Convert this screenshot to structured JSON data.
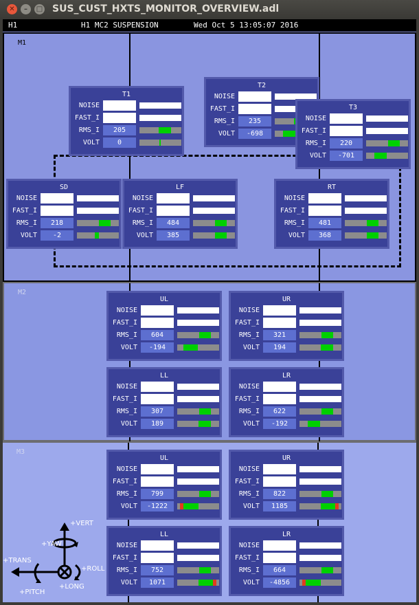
{
  "window": {
    "title": "SUS_CUST_HXTS_MONITOR_OVERVIEW.adl"
  },
  "header": {
    "ifo": "H1",
    "system": "H1 MC2 SUSPENSION",
    "datetime": "Wed Oct  5 13:05:07 2016"
  },
  "row_labels": {
    "noise": "NOISE",
    "fast_i": "FAST_I",
    "rms_i": "RMS_I",
    "volt": "VOLT"
  },
  "sections": {
    "m1": "M1",
    "m2": "M2",
    "m3": "M3"
  },
  "colors": {
    "background": "#8a95e0",
    "panel": "#3a4198",
    "meter_ok": "#00d000",
    "meter_alarm": "#e03c1e"
  },
  "panels": {
    "m1_t1": {
      "title": "T1",
      "rms_i": "205",
      "volt": "0",
      "rms_level": [
        0.46,
        0.76
      ],
      "volt_level": [
        0.48,
        0.52
      ]
    },
    "m1_t2": {
      "title": "T2",
      "rms_i": "235",
      "volt": "-698",
      "rms_level": [
        0.46,
        0.8
      ],
      "volt_level": [
        0.2,
        0.5
      ]
    },
    "m1_t3": {
      "title": "T3",
      "rms_i": "220",
      "volt": "-701",
      "rms_level": [
        0.52,
        0.8
      ],
      "volt_level": [
        0.2,
        0.5
      ]
    },
    "m1_sd": {
      "title": "SD",
      "rms_i": "218",
      "volt": "-2",
      "rms_level": [
        0.52,
        0.8
      ],
      "volt_level": [
        0.42,
        0.52
      ]
    },
    "m1_lf": {
      "title": "LF",
      "rms_i": "484",
      "volt": "385",
      "rms_level": [
        0.52,
        0.8
      ],
      "volt_level": [
        0.52,
        0.8
      ]
    },
    "m1_rt": {
      "title": "RT",
      "rms_i": "481",
      "volt": "368",
      "rms_level": [
        0.52,
        0.8
      ],
      "volt_level": [
        0.52,
        0.8
      ]
    },
    "m2_ul": {
      "title": "UL",
      "rms_i": "604",
      "volt": "-194",
      "rms_level": [
        0.52,
        0.8
      ],
      "volt_level": [
        0.15,
        0.5
      ]
    },
    "m2_ur": {
      "title": "UR",
      "rms_i": "321",
      "volt": "194",
      "rms_level": [
        0.52,
        0.8
      ],
      "volt_level": [
        0.5,
        0.8
      ]
    },
    "m2_ll": {
      "title": "LL",
      "rms_i": "307",
      "volt": "189",
      "rms_level": [
        0.52,
        0.8
      ],
      "volt_level": [
        0.5,
        0.8
      ]
    },
    "m2_lr": {
      "title": "LR",
      "rms_i": "622",
      "volt": "-192",
      "rms_level": [
        0.52,
        0.8
      ],
      "volt_level": [
        0.2,
        0.5
      ]
    },
    "m3_ul": {
      "title": "UL",
      "rms_i": "799",
      "volt": "-1222",
      "rms_level": [
        0.52,
        0.8
      ],
      "volt_level": [
        0.06,
        0.5
      ],
      "volt_alarm": [
        0.06,
        0.14
      ]
    },
    "m3_ur": {
      "title": "UR",
      "rms_i": "822",
      "volt": "1185",
      "rms_level": [
        0.52,
        0.8
      ],
      "volt_level": [
        0.5,
        0.93
      ],
      "volt_alarm": [
        0.86,
        0.94
      ]
    },
    "m3_ll": {
      "title": "LL",
      "rms_i": "752",
      "volt": "1071",
      "rms_level": [
        0.52,
        0.8
      ],
      "volt_level": [
        0.5,
        0.93
      ],
      "volt_alarm": [
        0.86,
        0.94
      ]
    },
    "m3_lr": {
      "title": "LR",
      "rms_i": "664",
      "volt": "-4856",
      "rms_level": [
        0.52,
        0.8
      ],
      "volt_level": [
        0.06,
        0.5
      ],
      "volt_alarm": [
        0.06,
        0.14
      ]
    }
  },
  "axes": {
    "vert": "+VERT",
    "yaw": "+YAW",
    "trans": "+TRANS",
    "roll": "+ROLL",
    "long": "+LONG",
    "pitch": "+PITCH"
  }
}
